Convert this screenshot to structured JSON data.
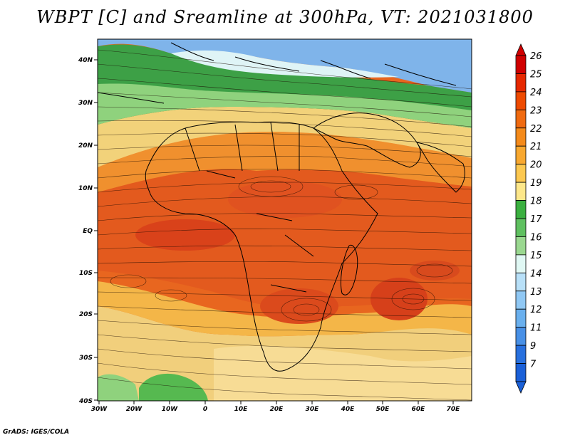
{
  "title": "WBPT [C] and Sreamline at 300hPa, VT: 2021031800",
  "credit": "GrADS: IGES/COLA",
  "map": {
    "lat_labels": [
      "40N",
      "30N",
      "20N",
      "10N",
      "EQ",
      "10S",
      "20S",
      "30S",
      "40S"
    ],
    "lon_labels": [
      "30W",
      "20W",
      "10W",
      "0",
      "10E",
      "20E",
      "30E",
      "40E",
      "50E",
      "60E",
      "70E"
    ],
    "fields": [
      {
        "name": "north-cold-region",
        "color": "#7fb4ea"
      },
      {
        "name": "north-green-band",
        "color": "#3da046"
      },
      {
        "name": "north-yellow-band",
        "color": "#f2d27a"
      },
      {
        "name": "central-red-zone",
        "color": "#e35a1e"
      },
      {
        "name": "southern-yellow-zone",
        "color": "#f1cf7c"
      },
      {
        "name": "southwest-green-patch",
        "color": "#56b950"
      }
    ]
  },
  "colorbar": {
    "levels": [
      "26",
      "25",
      "24",
      "23",
      "22",
      "21",
      "20",
      "19",
      "18",
      "17",
      "16",
      "15",
      "14",
      "13",
      "12",
      "11",
      "9",
      "7"
    ],
    "colors": [
      "#d00000",
      "#e62800",
      "#ee4a00",
      "#f06a10",
      "#f48a1a",
      "#f8a830",
      "#fcc850",
      "#fde78a",
      "#3bb040",
      "#5fc060",
      "#9ad890",
      "#e0f8f4",
      "#b8e0f8",
      "#90c8f4",
      "#6ab0ee",
      "#4890e6",
      "#2870de",
      "#1a60d8"
    ]
  }
}
